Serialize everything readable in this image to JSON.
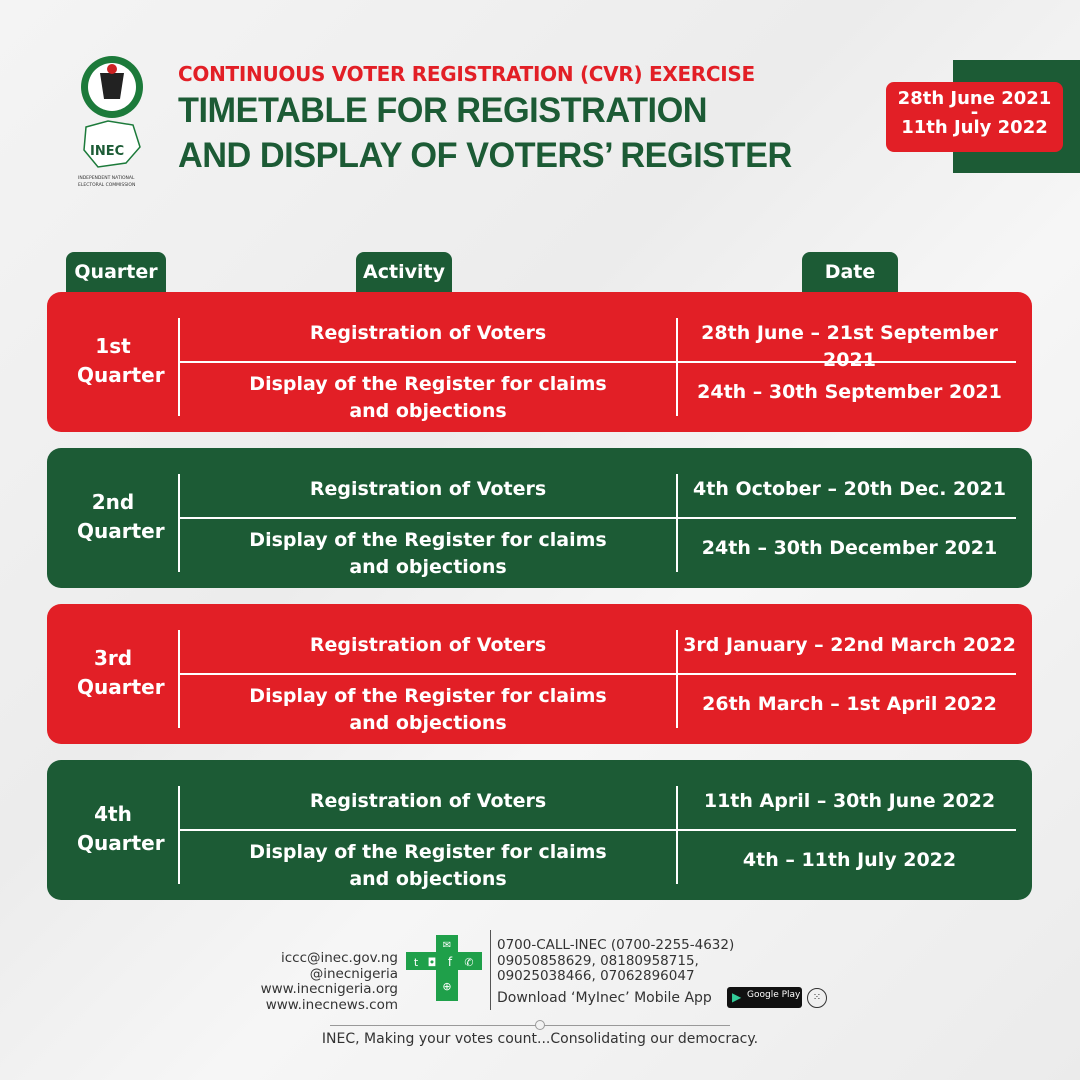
{
  "header": {
    "logo_text": "INEC",
    "logo_caption": "INDEPENDENT NATIONAL ELECTORAL COMMISSION",
    "subtitle": "CONTINUOUS VOTER REGISTRATION (CVR) EXERCISE",
    "title_line1": "TIMETABLE FOR REGISTRATION",
    "title_line2": "AND DISPLAY OF VOTERS’ REGISTER",
    "period_start": "28th June 2021",
    "period_sep": "-",
    "period_end": "11th July 2022"
  },
  "columns": {
    "quarter": "Quarter",
    "activity": "Activity",
    "date": "Date"
  },
  "quarters": [
    {
      "quarter": "1st Quarter",
      "color": "#e21f26",
      "rows": [
        {
          "activity": "Registration of Voters",
          "date": "28th June – 21st September 2021"
        },
        {
          "activity": "Display of the Register for claims and objections",
          "date": "24th – 30th September 2021"
        }
      ]
    },
    {
      "quarter": "2nd Quarter",
      "color": "#1c5b35",
      "rows": [
        {
          "activity": "Registration of Voters",
          "date": "4th October – 20th Dec. 2021"
        },
        {
          "activity": "Display of the Register for claims and objections",
          "date": "24th – 30th December 2021"
        }
      ]
    },
    {
      "quarter": "3rd Quarter",
      "color": "#e21f26",
      "rows": [
        {
          "activity": "Registration of Voters",
          "date": "3rd January – 22nd March 2022"
        },
        {
          "activity": "Display of the Register for claims and objections",
          "date": "26th March – 1st April 2022"
        }
      ]
    },
    {
      "quarter": "4th Quarter",
      "color": "#1c5b35",
      "rows": [
        {
          "activity": "Registration of Voters",
          "date": "11th April – 30th June 2022"
        },
        {
          "activity": "Display of the Register for claims and objections",
          "date": "4th – 11th July 2022"
        }
      ]
    }
  ],
  "footer": {
    "email": "iccc@inec.gov.ng",
    "handle": "@inecnigeria",
    "site1": "www.inecnigeria.org",
    "site2": "www.inecnews.com",
    "phone_main": "0700-CALL-INEC (0700-2255-4632)",
    "phones1": "09050858629, 08180958715,",
    "phones2": "09025038466, 07062896047",
    "download": "Download ‘MyInec’ Mobile App",
    "google_play": "Google Play",
    "tagline": "INEC, Making your votes count...Consolidating our democracy."
  }
}
